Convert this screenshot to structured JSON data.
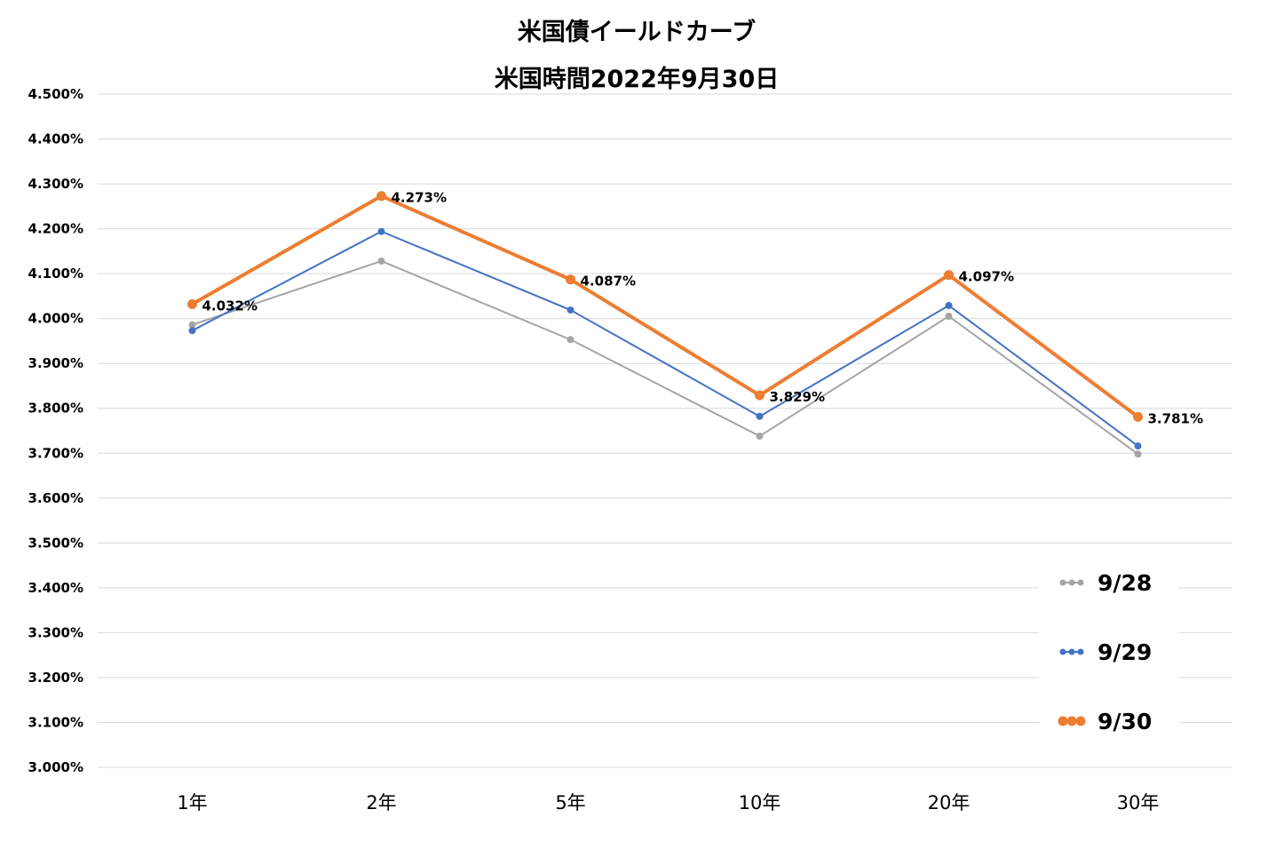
{
  "chart_data": {
    "type": "line",
    "title": "米国債イールドカーブ",
    "subtitle": "米国時間2022年9月30日",
    "categories": [
      "1年",
      "2年",
      "5年",
      "10年",
      "20年",
      "30年"
    ],
    "y_ticks": [
      "4.500%",
      "4.400%",
      "4.300%",
      "4.200%",
      "4.100%",
      "4.000%",
      "3.900%",
      "3.800%",
      "3.700%",
      "3.600%",
      "3.500%",
      "3.400%",
      "3.300%",
      "3.200%",
      "3.100%",
      "3.000%"
    ],
    "ylim": [
      3.0,
      4.5
    ],
    "grid": true,
    "legend_position": "bottom-right",
    "series": [
      {
        "name": "9/28",
        "color": "#a5a5a5",
        "values": [
          3.986,
          4.128,
          3.953,
          3.738,
          4.005,
          3.698
        ],
        "labels": []
      },
      {
        "name": "9/29",
        "color": "#4472c4",
        "values": [
          3.973,
          4.194,
          4.019,
          3.782,
          4.029,
          3.716
        ],
        "labels": []
      },
      {
        "name": "9/30",
        "color": "#ed7d31",
        "values": [
          4.032,
          4.273,
          4.087,
          3.829,
          4.097,
          3.781
        ],
        "labels": [
          "4.032%",
          "4.273%",
          "4.087%",
          "3.829%",
          "4.097%",
          "3.781%"
        ]
      }
    ]
  }
}
